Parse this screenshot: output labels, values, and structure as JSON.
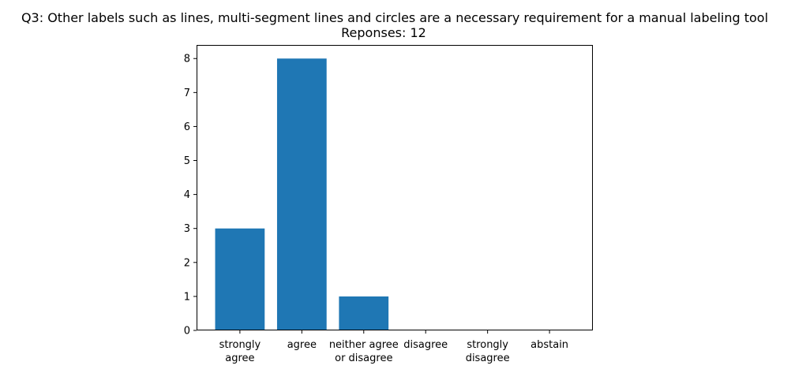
{
  "chart_data": {
    "type": "bar",
    "title": "Q3: Other labels such as lines, multi-segment lines and circles are a necessary requirement for a manual labeling tool",
    "subtitle": "Reponses: 12",
    "xlabel": "",
    "ylabel": "",
    "categories": [
      [
        "strongly",
        "agree"
      ],
      [
        "agree"
      ],
      [
        "neither agree",
        "or disagree"
      ],
      [
        "disagree"
      ],
      [
        "strongly",
        "disagree"
      ],
      [
        "abstain"
      ]
    ],
    "values": [
      3,
      8,
      1,
      0,
      0,
      0
    ],
    "ylim": [
      0,
      8.4
    ],
    "yticks": [
      "0",
      "1",
      "2",
      "3",
      "4",
      "5",
      "6",
      "7",
      "8"
    ],
    "grid": false,
    "bar_color": "#1f77b4"
  }
}
